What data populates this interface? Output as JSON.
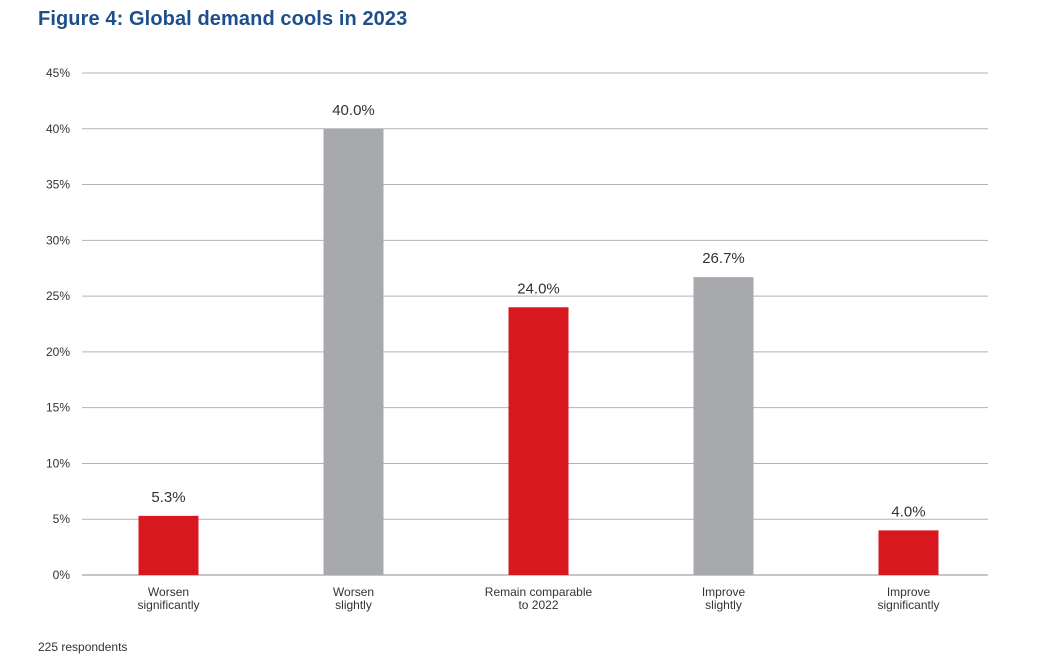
{
  "chart_data": {
    "type": "bar",
    "title": "Figure 4: Global demand cools in 2023",
    "categories": [
      [
        "Worsen",
        "significantly"
      ],
      [
        "Worsen",
        "slightly"
      ],
      [
        "Remain comparable",
        "to 2022"
      ],
      [
        "Improve",
        "slightly"
      ],
      [
        "Improve",
        "significantly"
      ]
    ],
    "values": [
      5.3,
      40.0,
      24.0,
      26.7,
      4.0
    ],
    "value_labels": [
      "5.3%",
      "40.0%",
      "24.0%",
      "26.7%",
      "4.0%"
    ],
    "bar_colors": [
      "#d7191f",
      "#a7a9ac",
      "#d7191f",
      "#a7a9ac",
      "#d7191f"
    ],
    "ylim": [
      0,
      45
    ],
    "yticks": [
      0,
      5,
      10,
      15,
      20,
      25,
      30,
      35,
      40,
      45
    ],
    "ytick_labels": [
      "0%",
      "5%",
      "10%",
      "15%",
      "20%",
      "25%",
      "30%",
      "35%",
      "40%",
      "45%"
    ],
    "xlabel": "",
    "ylabel": "",
    "grid": true,
    "legend": "none"
  },
  "colors": {
    "title": "#1f4f8a",
    "gridline": "#b3b3b3",
    "text": "#333333"
  },
  "footnote": "225 respondents"
}
